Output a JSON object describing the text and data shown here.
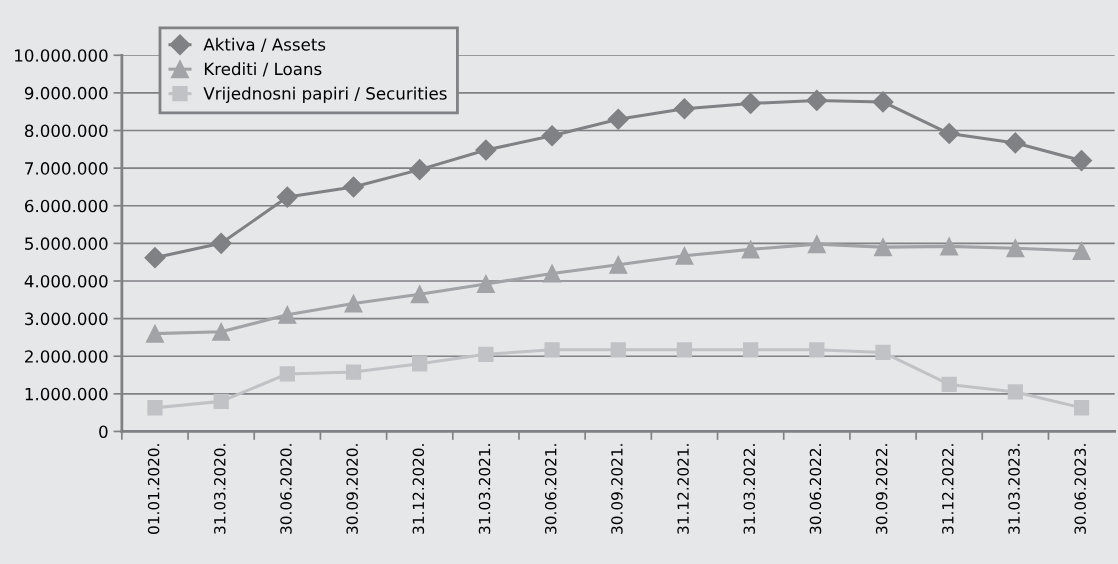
{
  "chart_data": {
    "type": "line",
    "categories": [
      "01.01.2020.",
      "31.03.2020.",
      "30.06.2020.",
      "30.09.2020.",
      "31.12.2020.",
      "31.03.2021.",
      "30.06.2021.",
      "30.09.2021.",
      "31.12.2021.",
      "31.03.2022.",
      "30.06.2022.",
      "30.09.2022.",
      "31.12.2022.",
      "31.03.2023.",
      "30.06.2023."
    ],
    "series": [
      {
        "name": "Aktiva / Assets",
        "color": "#808184",
        "marker": "diamond",
        "values": [
          4620000,
          5000000,
          6230000,
          6500000,
          6960000,
          7480000,
          7860000,
          8300000,
          8580000,
          8720000,
          8800000,
          8760000,
          7920000,
          7670000,
          7200000
        ]
      },
      {
        "name": "Krediti / Loans",
        "color": "#a2a3a6",
        "marker": "triangle",
        "values": [
          2600000,
          2650000,
          3100000,
          3400000,
          3650000,
          3920000,
          4200000,
          4430000,
          4670000,
          4840000,
          4980000,
          4900000,
          4920000,
          4870000,
          4800000
        ]
      },
      {
        "name": "Vrijednosni papiri / Securities",
        "color": "#c1c2c5",
        "marker": "square",
        "values": [
          630000,
          800000,
          1530000,
          1580000,
          1800000,
          2050000,
          2170000,
          2170000,
          2170000,
          2170000,
          2170000,
          2100000,
          1250000,
          1050000,
          630000
        ]
      }
    ],
    "ylim": [
      0,
      10000000
    ],
    "yticks": [
      0,
      {
        "value": 1000000,
        "label": "1.000.000"
      },
      {
        "value": 2000000,
        "label": "2.000.000"
      },
      {
        "value": 3000000,
        "label": "3.000.000"
      },
      {
        "value": 4000000,
        "label": "4.000.000"
      },
      {
        "value": 5000000,
        "label": "5.000.000"
      },
      {
        "value": 6000000,
        "label": "6.000.000"
      },
      {
        "value": 7000000,
        "label": "7.000.000"
      },
      {
        "value": 8000000,
        "label": "8.000.000"
      },
      {
        "value": 9000000,
        "label": "9.000.000"
      },
      {
        "value": 10000000,
        "label": "10.000.000"
      }
    ],
    "grid": "y",
    "legend": "top left",
    "line_style": "solid"
  }
}
